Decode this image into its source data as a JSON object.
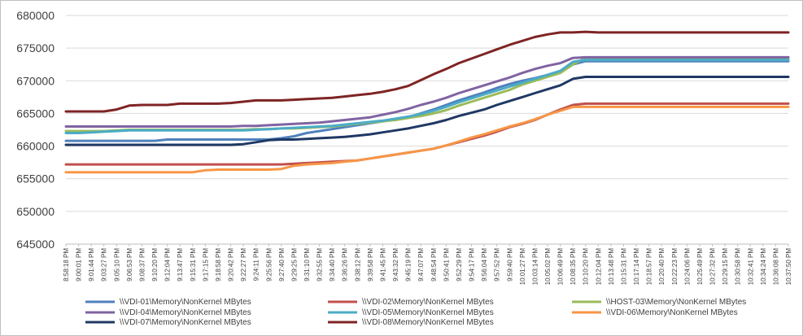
{
  "chart_data": {
    "type": "line",
    "title": "",
    "xlabel": "",
    "ylabel": "",
    "ylim": [
      645000,
      680000
    ],
    "yticks": [
      "645000",
      "650000",
      "655000",
      "660000",
      "665000",
      "670000",
      "675000",
      "680000"
    ],
    "grid": true,
    "legend_position": "bottom",
    "x": [
      "8:58:18 PM",
      "9:00:01 PM",
      "9:01:44 PM",
      "9:03:27 PM",
      "9:05:10 PM",
      "9:06:53 PM",
      "9:08:37 PM",
      "9:10:20 PM",
      "9:12:04 PM",
      "9:13:47 PM",
      "9:15:31 PM",
      "9:17:15 PM",
      "9:18:58 PM",
      "9:20:42 PM",
      "9:22:27 PM",
      "9:24:11 PM",
      "9:25:56 PM",
      "9:27:40 PM",
      "9:29:25 PM",
      "9:31:10 PM",
      "9:32:55 PM",
      "9:34:40 PM",
      "9:36:26 PM",
      "9:38:12 PM",
      "9:39:58 PM",
      "9:41:45 PM",
      "9:43:32 PM",
      "9:45:19 PM",
      "9:47:07 PM",
      "9:48:54 PM",
      "9:50:41 PM",
      "9:52:29 PM",
      "9:54:17 PM",
      "9:56:04 PM",
      "9:57:52 PM",
      "9:59:40 PM",
      "10:01:27 PM",
      "10:03:14 PM",
      "10:05:02 PM",
      "10:06:49 PM",
      "10:08:35 PM",
      "10:10:20 PM",
      "10:12:04 PM",
      "10:13:48 PM",
      "10:15:31 PM",
      "10:17:14 PM",
      "10:18:57 PM",
      "10:20:40 PM",
      "10:22:23 PM",
      "10:24:06 PM",
      "10:25:49 PM",
      "10:27:32 PM",
      "10:29:15 PM",
      "10:30:58 PM",
      "10:32:41 PM",
      "10:34:24 PM",
      "10:36:08 PM",
      "10:37:50 PM"
    ],
    "series": [
      {
        "name": "\\\\VDI-01\\Memory\\NonKernel MBytes",
        "color": "#4f81bd",
        "values": [
          660800,
          660800,
          660800,
          660800,
          660800,
          660800,
          660800,
          660800,
          661000,
          661000,
          661000,
          661000,
          661000,
          661000,
          661000,
          661000,
          661000,
          661200,
          661500,
          662000,
          662300,
          662600,
          662900,
          663200,
          663500,
          663800,
          664100,
          664400,
          665000,
          665600,
          666300,
          667000,
          667600,
          668200,
          668900,
          669500,
          670000,
          670400,
          670900,
          671500,
          672500,
          673000,
          673000,
          673000,
          673000,
          673000,
          673000,
          673000,
          673000,
          673000,
          673000,
          673000,
          673000,
          673000,
          673000,
          673000,
          673000,
          673000
        ]
      },
      {
        "name": "\\\\VDI-02\\Memory\\NonKernel MBytes",
        "color": "#c0504d",
        "values": [
          657200,
          657200,
          657200,
          657200,
          657200,
          657200,
          657200,
          657200,
          657200,
          657200,
          657200,
          657200,
          657200,
          657200,
          657200,
          657200,
          657200,
          657200,
          657300,
          657400,
          657500,
          657600,
          657700,
          657800,
          658100,
          658400,
          658700,
          659000,
          659300,
          659600,
          660100,
          660600,
          661100,
          661600,
          662200,
          662900,
          663400,
          664000,
          664800,
          665600,
          666300,
          666500,
          666500,
          666500,
          666500,
          666500,
          666500,
          666500,
          666500,
          666500,
          666500,
          666500,
          666500,
          666500,
          666500,
          666500,
          666500,
          666500
        ]
      },
      {
        "name": "\\\\HOST-03\\Memory\\NonKernel MBytes",
        "color": "#9bbb59",
        "values": [
          662300,
          662300,
          662300,
          662300,
          662400,
          662500,
          662500,
          662500,
          662500,
          662500,
          662500,
          662500,
          662500,
          662500,
          662500,
          662600,
          662600,
          662700,
          662700,
          662800,
          662900,
          663000,
          663200,
          663400,
          663600,
          663800,
          664000,
          664300,
          664600,
          665000,
          665500,
          666200,
          666800,
          667400,
          668000,
          668600,
          669400,
          670000,
          670600,
          671200,
          672500,
          673500,
          673500,
          673500,
          673500,
          673500,
          673500,
          673500,
          673500,
          673500,
          673500,
          673500,
          673500,
          673500,
          673500,
          673500,
          673500,
          673500
        ]
      },
      {
        "name": "\\\\VDI-04\\Memory\\NonKernel MBytes",
        "color": "#8064a2",
        "values": [
          663000,
          663000,
          663000,
          663000,
          663000,
          663000,
          663000,
          663000,
          663000,
          663000,
          663000,
          663000,
          663000,
          663000,
          663100,
          663100,
          663200,
          663300,
          663400,
          663500,
          663600,
          663800,
          664000,
          664200,
          664400,
          664800,
          665200,
          665700,
          666300,
          666800,
          667400,
          668100,
          668700,
          669300,
          669900,
          670500,
          671200,
          671800,
          672300,
          672700,
          673500,
          673600,
          673600,
          673600,
          673600,
          673600,
          673600,
          673600,
          673600,
          673600,
          673600,
          673600,
          673600,
          673600,
          673600,
          673600,
          673600,
          673600
        ]
      },
      {
        "name": "\\\\VDI-05\\Memory\\NonKernel MBytes",
        "color": "#4bacc6",
        "values": [
          662000,
          662000,
          662100,
          662200,
          662300,
          662400,
          662400,
          662400,
          662400,
          662400,
          662400,
          662400,
          662400,
          662400,
          662400,
          662500,
          662600,
          662700,
          662800,
          662900,
          663000,
          663100,
          663300,
          663500,
          663700,
          663900,
          664200,
          664500,
          664900,
          665400,
          666000,
          666700,
          667300,
          667900,
          668500,
          669100,
          669700,
          670300,
          670900,
          671500,
          672900,
          673200,
          673200,
          673200,
          673200,
          673200,
          673200,
          673200,
          673200,
          673200,
          673200,
          673200,
          673200,
          673200,
          673200,
          673200,
          673200,
          673200
        ]
      },
      {
        "name": "\\\\VDI-06\\Memory\\NonKernel MBytes",
        "color": "#f79646",
        "values": [
          656000,
          656000,
          656000,
          656000,
          656000,
          656000,
          656000,
          656000,
          656000,
          656000,
          656000,
          656300,
          656400,
          656400,
          656400,
          656400,
          656400,
          656500,
          657000,
          657200,
          657300,
          657400,
          657600,
          657800,
          658100,
          658400,
          658700,
          659000,
          659300,
          659600,
          660100,
          660700,
          661300,
          661800,
          662400,
          663000,
          663500,
          664100,
          664800,
          665400,
          666000,
          666000,
          666000,
          666000,
          666000,
          666000,
          666000,
          666000,
          666000,
          666000,
          666000,
          666000,
          666000,
          666000,
          666000,
          666000,
          666000,
          666000
        ]
      },
      {
        "name": "\\\\VDI-07\\Memory\\NonKernel MBytes",
        "color": "#1f3864",
        "values": [
          660200,
          660200,
          660200,
          660200,
          660200,
          660200,
          660200,
          660200,
          660200,
          660200,
          660200,
          660200,
          660200,
          660200,
          660300,
          660600,
          660900,
          661000,
          661000,
          661100,
          661200,
          661300,
          661400,
          661600,
          661800,
          662100,
          662400,
          662700,
          663100,
          663500,
          664000,
          664600,
          665100,
          665600,
          666300,
          666900,
          667500,
          668100,
          668700,
          669300,
          670300,
          670600,
          670600,
          670600,
          670600,
          670600,
          670600,
          670600,
          670600,
          670600,
          670600,
          670600,
          670600,
          670600,
          670600,
          670600,
          670600,
          670600
        ]
      },
      {
        "name": "\\\\VDI-08\\Memory\\NonKernel MBytes",
        "color": "#7f2424",
        "values": [
          665300,
          665300,
          665300,
          665300,
          665600,
          666200,
          666300,
          666300,
          666300,
          666500,
          666500,
          666500,
          666500,
          666600,
          666800,
          667000,
          667000,
          667000,
          667100,
          667200,
          667300,
          667400,
          667600,
          667800,
          668000,
          668300,
          668700,
          669200,
          670100,
          671000,
          671800,
          672700,
          673400,
          674100,
          674800,
          675500,
          676100,
          676700,
          677100,
          677400,
          677400,
          677500,
          677400,
          677400,
          677400,
          677400,
          677400,
          677400,
          677400,
          677400,
          677400,
          677400,
          677400,
          677400,
          677400,
          677400,
          677400,
          677400
        ]
      }
    ]
  }
}
